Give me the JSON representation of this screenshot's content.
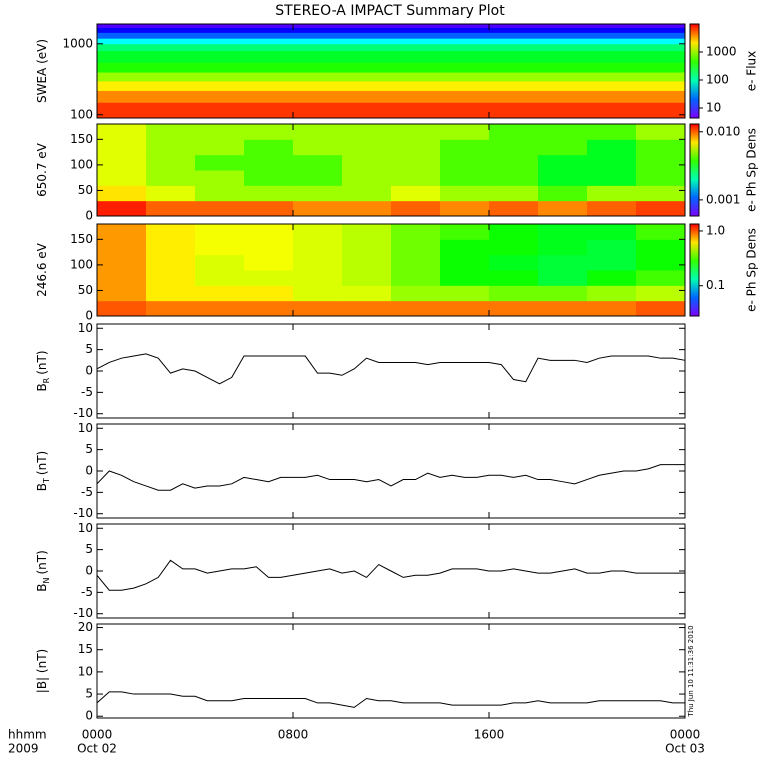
{
  "title": "STEREO-A IMPACT Summary Plot",
  "chart_data": [
    {
      "type": "heatmap",
      "ylabel": "SWEA (eV)",
      "log_y": true,
      "ylim": [
        90,
        1900
      ],
      "yticks": [
        100,
        1000
      ],
      "x_bins": [
        0,
        24
      ],
      "y_bins": [
        90,
        150,
        220,
        300,
        400,
        550,
        800,
        1000,
        1200,
        1450,
        1700,
        1900
      ],
      "values": [
        [
          7000
        ],
        [
          4000
        ],
        [
          2000
        ],
        [
          900
        ],
        [
          400
        ],
        [
          250
        ],
        [
          150
        ],
        [
          60
        ],
        [
          20
        ],
        [
          10
        ],
        [
          6
        ]
      ],
      "colorbar": {
        "label": "e- Flux",
        "lim": [
          4.4,
          10000
        ],
        "ticks": [
          10,
          100,
          1000
        ]
      }
    },
    {
      "type": "heatmap",
      "ylabel": "650.7 eV",
      "ylim": [
        0,
        180
      ],
      "yticks": [
        0,
        50,
        100,
        150
      ],
      "x_bins": [
        0,
        2,
        4,
        6,
        8,
        10,
        12,
        14,
        16,
        18,
        20,
        22,
        24
      ],
      "y_bins": [
        0,
        30,
        60,
        90,
        120,
        150,
        180
      ],
      "values": [
        [
          0.012,
          0.01,
          0.01,
          0.01,
          0.009,
          0.009,
          0.01,
          0.009,
          0.01,
          0.009,
          0.01,
          0.011
        ],
        [
          0.007,
          0.006,
          0.005,
          0.005,
          0.005,
          0.005,
          0.006,
          0.005,
          0.005,
          0.004,
          0.005,
          0.005
        ],
        [
          0.006,
          0.005,
          0.005,
          0.004,
          0.004,
          0.005,
          0.005,
          0.004,
          0.004,
          0.003,
          0.003,
          0.004
        ],
        [
          0.006,
          0.005,
          0.004,
          0.004,
          0.004,
          0.005,
          0.005,
          0.004,
          0.004,
          0.003,
          0.003,
          0.004
        ],
        [
          0.006,
          0.005,
          0.005,
          0.004,
          0.005,
          0.005,
          0.005,
          0.004,
          0.004,
          0.004,
          0.003,
          0.004
        ],
        [
          0.006,
          0.005,
          0.005,
          0.005,
          0.005,
          0.005,
          0.005,
          0.005,
          0.004,
          0.004,
          0.004,
          0.005
        ]
      ],
      "colorbar": {
        "label": "e- Ph Sp Dens",
        "lim": [
          0.00058,
          0.013
        ],
        "ticks": [
          0.001,
          {
            "value": 0.01,
            "label": "0.010"
          }
        ]
      }
    },
    {
      "type": "heatmap",
      "ylabel": "246.6 eV",
      "ylim": [
        0,
        180
      ],
      "yticks": [
        0,
        50,
        100,
        150
      ],
      "x_bins": [
        0,
        2,
        4,
        6,
        8,
        10,
        12,
        14,
        16,
        18,
        20,
        22,
        24
      ],
      "y_bins": [
        0,
        30,
        60,
        90,
        120,
        150,
        180
      ],
      "values": [
        [
          1.0,
          0.9,
          0.9,
          0.9,
          0.9,
          0.9,
          0.9,
          0.9,
          0.9,
          0.9,
          0.9,
          1.0
        ],
        [
          0.8,
          0.6,
          0.6,
          0.6,
          0.5,
          0.5,
          0.4,
          0.4,
          0.35,
          0.35,
          0.4,
          0.45
        ],
        [
          0.8,
          0.6,
          0.5,
          0.5,
          0.5,
          0.45,
          0.35,
          0.25,
          0.25,
          0.2,
          0.25,
          0.3
        ],
        [
          0.8,
          0.6,
          0.5,
          0.55,
          0.5,
          0.45,
          0.35,
          0.25,
          0.22,
          0.2,
          0.2,
          0.25
        ],
        [
          0.8,
          0.6,
          0.55,
          0.55,
          0.5,
          0.45,
          0.35,
          0.25,
          0.25,
          0.22,
          0.2,
          0.25
        ],
        [
          0.8,
          0.6,
          0.55,
          0.55,
          0.5,
          0.45,
          0.35,
          0.3,
          0.25,
          0.22,
          0.22,
          0.3
        ]
      ],
      "colorbar": {
        "label": "e- Ph Sp Dens",
        "lim": [
          0.028,
          1.34
        ],
        "ticks": [
          0.1,
          {
            "value": 1,
            "label": "1.0"
          }
        ]
      }
    },
    {
      "type": "line",
      "ylabel": "B",
      "ylabel_sub": "R",
      "ylabel_unit": "(nT)",
      "color": "#000000",
      "ylim": [
        -11,
        11
      ],
      "yticks": [
        -10,
        -5,
        0,
        5,
        10
      ],
      "x": [
        0,
        0.5,
        1,
        1.5,
        2,
        2.5,
        3,
        3.5,
        4,
        4.5,
        5,
        5.5,
        6,
        6.5,
        7,
        7.5,
        8,
        8.5,
        9,
        9.5,
        10,
        10.5,
        11,
        11.5,
        12,
        12.5,
        13,
        13.5,
        14,
        14.5,
        15,
        15.5,
        16,
        16.5,
        17,
        17.5,
        18,
        18.5,
        19,
        19.5,
        20,
        20.5,
        21,
        21.5,
        22,
        22.5,
        23,
        23.5,
        24
      ],
      "values": [
        0.5,
        2,
        3,
        3.5,
        4,
        3,
        -0.5,
        0.5,
        0,
        -1.5,
        -3,
        -1.5,
        3.5,
        3.5,
        3.5,
        3.5,
        3.5,
        3.5,
        -0.5,
        -0.5,
        -1,
        0.5,
        3,
        2,
        2,
        2,
        2,
        1.5,
        2,
        2,
        2,
        2,
        2,
        1.5,
        -2,
        -2.5,
        3,
        2.5,
        2.5,
        2.5,
        2,
        3,
        3.5,
        3.5,
        3.5,
        3.5,
        3,
        3,
        2.5
      ]
    },
    {
      "type": "line",
      "ylabel": "B",
      "ylabel_sub": "T",
      "ylabel_unit": "(nT)",
      "color": "#000000",
      "ylim": [
        -11,
        11
      ],
      "yticks": [
        -10,
        -5,
        0,
        5,
        10
      ],
      "x": [
        0,
        0.5,
        1,
        1.5,
        2,
        2.5,
        3,
        3.5,
        4,
        4.5,
        5,
        5.5,
        6,
        6.5,
        7,
        7.5,
        8,
        8.5,
        9,
        9.5,
        10,
        10.5,
        11,
        11.5,
        12,
        12.5,
        13,
        13.5,
        14,
        14.5,
        15,
        15.5,
        16,
        16.5,
        17,
        17.5,
        18,
        18.5,
        19,
        19.5,
        20,
        20.5,
        21,
        21.5,
        22,
        22.5,
        23,
        23.5,
        24
      ],
      "values": [
        -3,
        0,
        -1,
        -2.5,
        -3.5,
        -4.5,
        -4.5,
        -3,
        -4,
        -3.5,
        -3.5,
        -3,
        -1.5,
        -2,
        -2.5,
        -1.5,
        -1.5,
        -1.5,
        -1,
        -2,
        -2,
        -2,
        -2.5,
        -2,
        -3.5,
        -2,
        -2,
        -0.5,
        -1.5,
        -1,
        -1.5,
        -1.5,
        -1,
        -1,
        -1.5,
        -1,
        -2,
        -2,
        -2.5,
        -3,
        -2,
        -1,
        -0.5,
        0,
        0,
        0.5,
        1.5,
        1.5,
        1.5
      ]
    },
    {
      "type": "line",
      "ylabel": "B",
      "ylabel_sub": "N",
      "ylabel_unit": "(nT)",
      "color": "#000000",
      "ylim": [
        -11,
        11
      ],
      "yticks": [
        -10,
        -5,
        0,
        5,
        10
      ],
      "x": [
        0,
        0.5,
        1,
        1.5,
        2,
        2.5,
        3,
        3.5,
        4,
        4.5,
        5,
        5.5,
        6,
        6.5,
        7,
        7.5,
        8,
        8.5,
        9,
        9.5,
        10,
        10.5,
        11,
        11.5,
        12,
        12.5,
        13,
        13.5,
        14,
        14.5,
        15,
        15.5,
        16,
        16.5,
        17,
        17.5,
        18,
        18.5,
        19,
        19.5,
        20,
        20.5,
        21,
        21.5,
        22,
        22.5,
        23,
        23.5,
        24
      ],
      "values": [
        -1,
        -4.5,
        -4.5,
        -4,
        -3,
        -1.5,
        2.5,
        0.5,
        0.5,
        -0.5,
        0,
        0.5,
        0.5,
        1,
        -1.5,
        -1.5,
        -1,
        -0.5,
        0,
        0.5,
        -0.5,
        0,
        -1.5,
        1.5,
        0,
        -1.5,
        -1,
        -1,
        -0.5,
        0.5,
        0.5,
        0.5,
        0,
        0,
        0.5,
        0,
        -0.5,
        -0.5,
        0,
        0.5,
        -0.5,
        -0.5,
        0,
        0,
        -0.5,
        -0.5,
        -0.5,
        -0.5,
        -0.5
      ]
    },
    {
      "type": "line",
      "ylabel": "|B| (nT)",
      "color": "#000000",
      "ylim": [
        -0.4,
        20.8
      ],
      "yticks": [
        0,
        5,
        10,
        15,
        20
      ],
      "x": [
        0,
        0.5,
        1,
        1.5,
        2,
        2.5,
        3,
        3.5,
        4,
        4.5,
        5,
        5.5,
        6,
        6.5,
        7,
        7.5,
        8,
        8.5,
        9,
        9.5,
        10,
        10.5,
        11,
        11.5,
        12,
        12.5,
        13,
        13.5,
        14,
        14.5,
        15,
        15.5,
        16,
        16.5,
        17,
        17.5,
        18,
        18.5,
        19,
        19.5,
        20,
        20.5,
        21,
        21.5,
        22,
        22.5,
        23,
        23.5,
        24
      ],
      "values": [
        3,
        5.5,
        5.5,
        5,
        5,
        5,
        5,
        4.5,
        4.5,
        3.5,
        3.5,
        3.5,
        4,
        4,
        4,
        4,
        4,
        4,
        3,
        3,
        2.5,
        2,
        4,
        3.5,
        3.5,
        3,
        3,
        3,
        3,
        2.5,
        2.5,
        2.5,
        2.5,
        2.5,
        3,
        3,
        3.5,
        3,
        3,
        3,
        3,
        3.5,
        3.5,
        3.5,
        3.5,
        3.5,
        3.5,
        3,
        3
      ]
    }
  ],
  "x_axis": {
    "xlim": [
      0,
      24
    ],
    "xticks": [
      {
        "value": 0,
        "label": "0000"
      },
      {
        "value": 8,
        "label": "0800"
      },
      {
        "value": 16,
        "label": "1600"
      },
      {
        "value": 24,
        "label": "0000"
      }
    ],
    "start_date": "Oct 02",
    "end_date": "Oct 03",
    "format_label": "hhmm",
    "year": "2009"
  },
  "timestamp": "Thu Jun 10 11:31:36 2010"
}
